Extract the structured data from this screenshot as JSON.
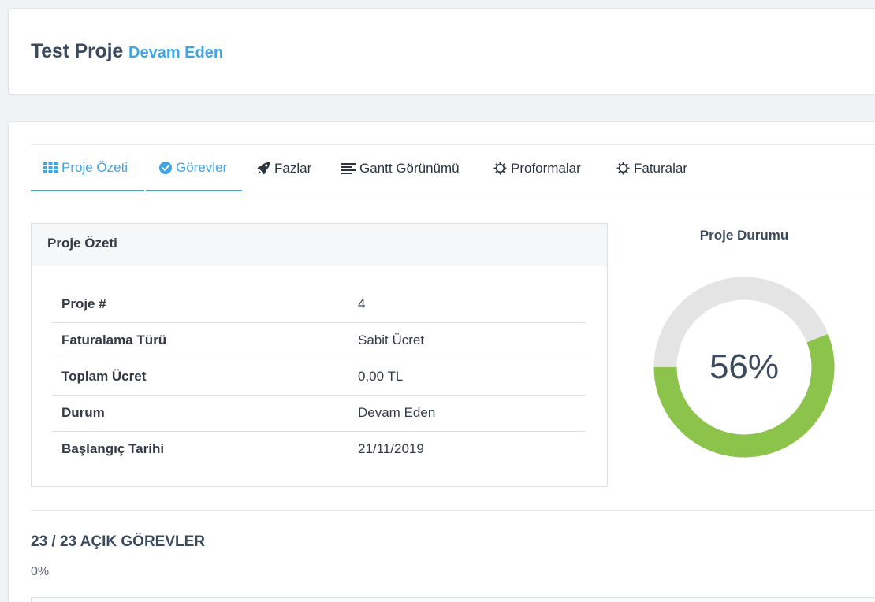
{
  "header": {
    "title": "Test Proje",
    "status": "Devam Eden"
  },
  "tabs": [
    {
      "label": "Proje Özeti",
      "icon": "grid-icon",
      "active": true
    },
    {
      "label": "Görevler",
      "icon": "check-circle-icon",
      "active": true
    },
    {
      "label": "Fazlar",
      "icon": "rocket-icon",
      "active": false
    },
    {
      "label": "Gantt Görünümü",
      "icon": "align-left-icon",
      "active": false
    },
    {
      "label": "Proformalar",
      "icon": "gear-icon",
      "active": false
    },
    {
      "label": "Faturalar",
      "icon": "gear-icon",
      "active": false
    }
  ],
  "summary": {
    "title": "Proje Özeti",
    "rows": [
      {
        "key": "Proje #",
        "value": "4"
      },
      {
        "key": "Faturalama Türü",
        "value": "Sabit Ücret"
      },
      {
        "key": "Toplam Ücret",
        "value": "0,00 TL"
      },
      {
        "key": "Durum",
        "value": "Devam Eden"
      },
      {
        "key": "Başlangıç Tarihi",
        "value": "21/11/2019"
      }
    ]
  },
  "project_status": {
    "title": "Proje Durumu",
    "percent_label": "56%",
    "percent": 56
  },
  "tasks": {
    "heading": "23 / 23 AÇIK GÖREVLER",
    "progress": "0%"
  },
  "colors": {
    "accent": "#3ea5e6",
    "donut_fill": "#8cc34a",
    "donut_track": "#e4e4e4",
    "text_dark": "#3b4a5e"
  }
}
